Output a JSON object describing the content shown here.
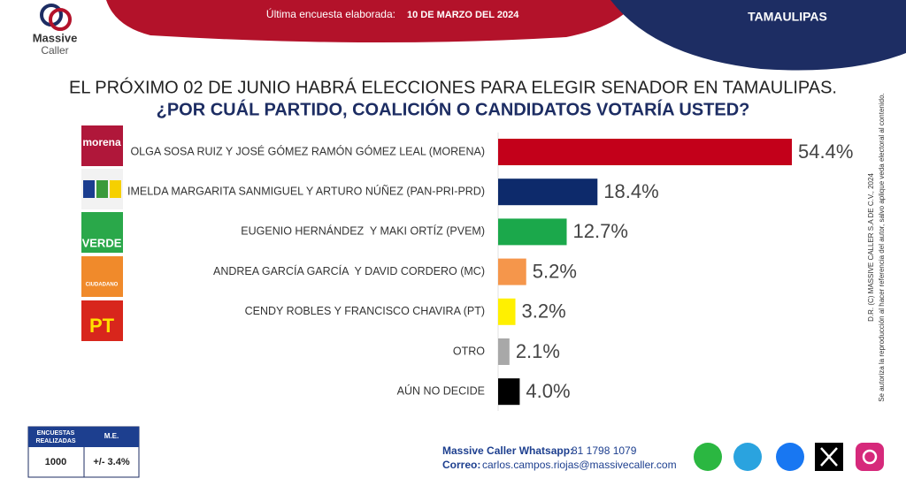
{
  "header": {
    "brand": "Massive",
    "brand_sub": "Caller",
    "survey_label": "Última encuesta elaborada:",
    "survey_date": "10 DE MARZO DEL 2024",
    "region": "TAMAULIPAS"
  },
  "chart_data": {
    "type": "bar",
    "orientation": "horizontal",
    "title": "EL PRÓXIMO 02 DE JUNIO HABRÁ ELECCIONES PARA ELEGIR SENADOR EN TAMAULIPAS.",
    "subtitle": "¿POR CUÁL PARTIDO, COALICIÓN O CANDIDATOS VOTARÍA USTED?",
    "categories": [
      "OLGA SOSA RUIZ Y JOSÉ GÓMEZ RAMÓN GÓMEZ LEAL (MORENA)",
      "IMELDA MARGARITA SANMIGUEL Y ARTURO NÚÑEZ (PAN-PRI-PRD)",
      "EUGENIO HERNÁNDEZ  Y MAKI ORTÍZ (PVEM)",
      "ANDREA GARCÍA GARCÍA  Y DAVID CORDERO (MC)",
      "CENDY ROBLES Y FRANCISCO CHAVIRA (PT)",
      "OTRO",
      "AÚN NO DECIDE"
    ],
    "values": [
      54.4,
      18.4,
      12.7,
      5.2,
      3.2,
      2.1,
      4.0
    ],
    "value_labels": [
      "54.4%",
      "18.4%",
      "12.7%",
      "5.2%",
      "3.2%",
      "2.1%",
      "4.0%"
    ],
    "colors": [
      "#c3001a",
      "#0d2a6b",
      "#1ba84b",
      "#f5964b",
      "#fff000",
      "#a8a8a8",
      "#000000"
    ]
  },
  "logo_texts": [
    "morena",
    "CIUDADANO",
    "VERDE",
    "PT"
  ],
  "side_notes": [
    "D.R. (C) MASSIVE CALLER S.A DE C.V., 2024",
    "Se autoriza la reproducción al hacer referencia del autor, salvo aplique veda electoral al contenido."
  ],
  "table": {
    "headers": [
      "ENCUESTAS REALIZADAS",
      "M.E."
    ],
    "row": [
      "1000",
      "+/- 3.4%"
    ]
  },
  "footer": {
    "whatsapp_label": "Massive Caller Whatsapp:",
    "whatsapp": "81 1798 1079",
    "email_label": "Correo:",
    "email": "carlos.campos.riojas@massivecaller.com"
  }
}
